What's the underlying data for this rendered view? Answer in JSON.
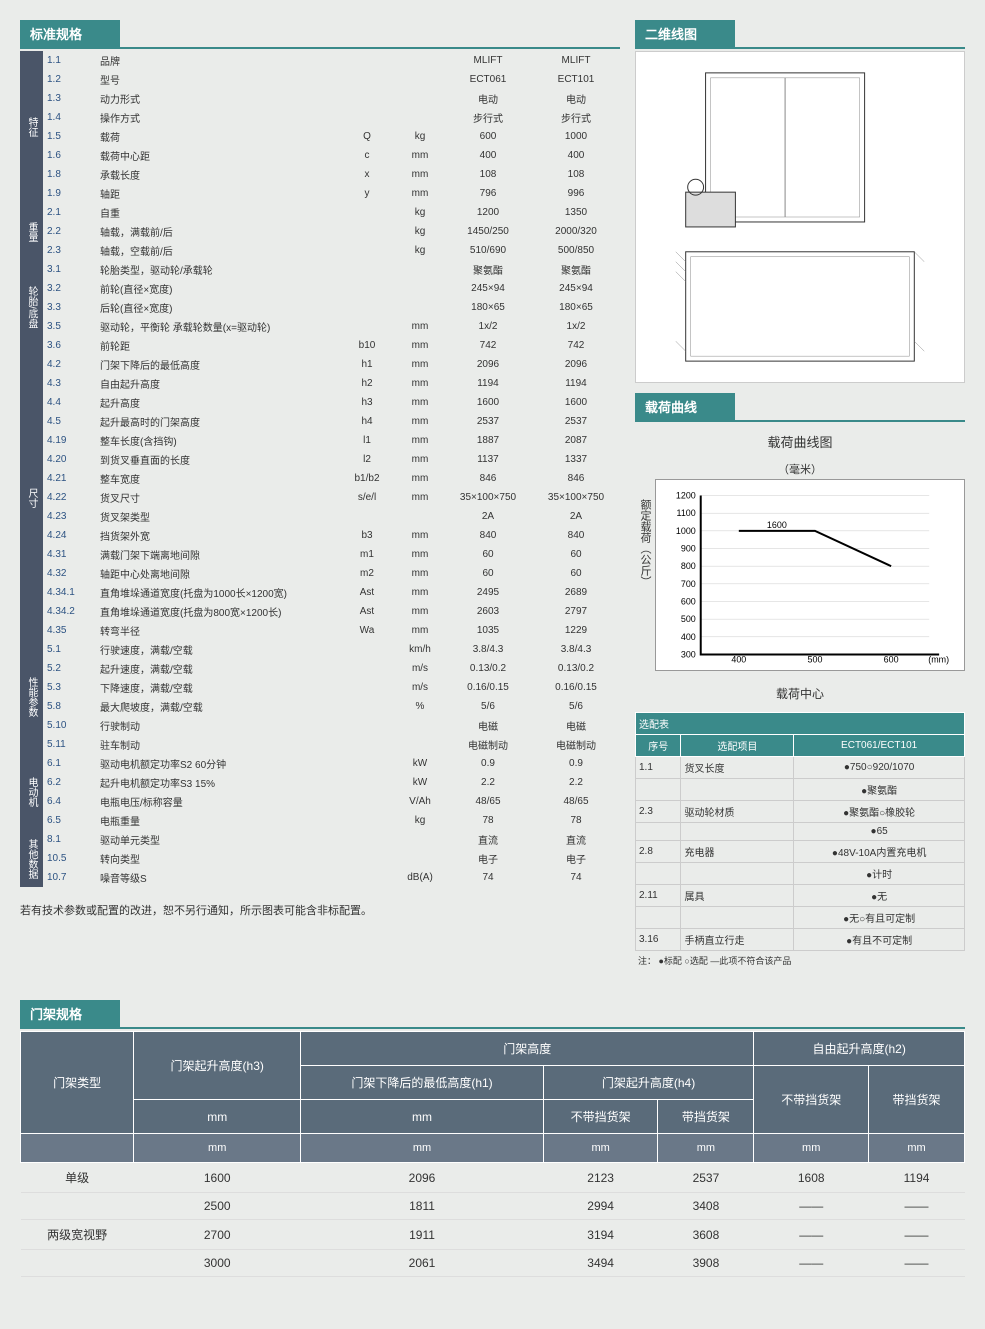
{
  "headers": {
    "spec": "标准规格",
    "drawing": "二维线图",
    "curve": "载荷曲线",
    "mast": "门架规格"
  },
  "spec_categories": [
    {
      "name": "特征",
      "rows": [
        {
          "n": "1.1",
          "l": "品牌",
          "s": "",
          "u": "",
          "v1": "MLIFT",
          "v2": "MLIFT"
        },
        {
          "n": "1.2",
          "l": "型号",
          "s": "",
          "u": "",
          "v1": "ECT061",
          "v2": "ECT101"
        },
        {
          "n": "1.3",
          "l": "动力形式",
          "s": "",
          "u": "",
          "v1": "电动",
          "v2": "电动"
        },
        {
          "n": "1.4",
          "l": "操作方式",
          "s": "",
          "u": "",
          "v1": "步行式",
          "v2": "步行式"
        },
        {
          "n": "1.5",
          "l": "载荷",
          "s": "Q",
          "u": "kg",
          "v1": "600",
          "v2": "1000"
        },
        {
          "n": "1.6",
          "l": "载荷中心距",
          "s": "c",
          "u": "mm",
          "v1": "400",
          "v2": "400"
        },
        {
          "n": "1.8",
          "l": "承载长度",
          "s": "x",
          "u": "mm",
          "v1": "108",
          "v2": "108"
        },
        {
          "n": "1.9",
          "l": "轴距",
          "s": "y",
          "u": "mm",
          "v1": "796",
          "v2": "996"
        }
      ]
    },
    {
      "name": "重量",
      "rows": [
        {
          "n": "2.1",
          "l": "自重",
          "s": "",
          "u": "kg",
          "v1": "1200",
          "v2": "1350"
        },
        {
          "n": "2.2",
          "l": "轴载，满载前/后",
          "s": "",
          "u": "kg",
          "v1": "1450/250",
          "v2": "2000/320"
        },
        {
          "n": "2.3",
          "l": "轴载，空载前/后",
          "s": "",
          "u": "kg",
          "v1": "510/690",
          "v2": "500/850"
        }
      ]
    },
    {
      "name": "轮胎/底盘",
      "rows": [
        {
          "n": "3.1",
          "l": "轮胎类型，驱动轮/承载轮",
          "s": "",
          "u": "",
          "v1": "聚氨酯",
          "v2": "聚氨酯"
        },
        {
          "n": "3.2",
          "l": "前轮(直径×宽度)",
          "s": "",
          "u": "",
          "v1": "245×94",
          "v2": "245×94"
        },
        {
          "n": "3.3",
          "l": "后轮(直径×宽度)",
          "s": "",
          "u": "",
          "v1": "180×65",
          "v2": "180×65"
        },
        {
          "n": "3.5",
          "l": "驱动轮，平衡轮 承载轮数量(x=驱动轮)",
          "s": "",
          "u": "mm",
          "v1": "1x/2",
          "v2": "1x/2"
        },
        {
          "n": "3.6",
          "l": "前轮距",
          "s": "b10",
          "u": "mm",
          "v1": "742",
          "v2": "742"
        }
      ]
    },
    {
      "name": "尺寸",
      "rows": [
        {
          "n": "4.2",
          "l": "门架下降后的最低高度",
          "s": "h1",
          "u": "mm",
          "v1": "2096",
          "v2": "2096"
        },
        {
          "n": "4.3",
          "l": "自由起升高度",
          "s": "h2",
          "u": "mm",
          "v1": "1194",
          "v2": "1194"
        },
        {
          "n": "4.4",
          "l": "起升高度",
          "s": "h3",
          "u": "mm",
          "v1": "1600",
          "v2": "1600"
        },
        {
          "n": "4.5",
          "l": "起升最高时的门架高度",
          "s": "h4",
          "u": "mm",
          "v1": "2537",
          "v2": "2537"
        },
        {
          "n": "4.19",
          "l": "整车长度(含挡钩)",
          "s": "l1",
          "u": "mm",
          "v1": "1887",
          "v2": "2087"
        },
        {
          "n": "4.20",
          "l": "到货叉垂直面的长度",
          "s": "l2",
          "u": "mm",
          "v1": "1137",
          "v2": "1337"
        },
        {
          "n": "4.21",
          "l": "整车宽度",
          "s": "b1/b2",
          "u": "mm",
          "v1": "846",
          "v2": "846"
        },
        {
          "n": "4.22",
          "l": "货叉尺寸",
          "s": "s/e/l",
          "u": "mm",
          "v1": "35×100×750",
          "v2": "35×100×750"
        },
        {
          "n": "4.23",
          "l": "货叉架类型",
          "s": "",
          "u": "",
          "v1": "2A",
          "v2": "2A"
        },
        {
          "n": "4.24",
          "l": "挡货架外宽",
          "s": "b3",
          "u": "mm",
          "v1": "840",
          "v2": "840"
        },
        {
          "n": "4.31",
          "l": "满载门架下端离地间隙",
          "s": "m1",
          "u": "mm",
          "v1": "60",
          "v2": "60"
        },
        {
          "n": "4.32",
          "l": "轴距中心处离地间隙",
          "s": "m2",
          "u": "mm",
          "v1": "60",
          "v2": "60"
        },
        {
          "n": "4.34.1",
          "l": "直角堆垛通道宽度(托盘为1000长×1200宽)",
          "s": "Ast",
          "u": "mm",
          "v1": "2495",
          "v2": "2689"
        },
        {
          "n": "4.34.2",
          "l": "直角堆垛通道宽度(托盘为800宽×1200长)",
          "s": "Ast",
          "u": "mm",
          "v1": "2603",
          "v2": "2797"
        },
        {
          "n": "4.35",
          "l": "转弯半径",
          "s": "Wa",
          "u": "mm",
          "v1": "1035",
          "v2": "1229"
        }
      ]
    },
    {
      "name": "性能参数",
      "rows": [
        {
          "n": "5.1",
          "l": "行驶速度，满载/空载",
          "s": "",
          "u": "km/h",
          "v1": "3.8/4.3",
          "v2": "3.8/4.3"
        },
        {
          "n": "5.2",
          "l": "起升速度，满载/空载",
          "s": "",
          "u": "m/s",
          "v1": "0.13/0.2",
          "v2": "0.13/0.2"
        },
        {
          "n": "5.3",
          "l": "下降速度，满载/空载",
          "s": "",
          "u": "m/s",
          "v1": "0.16/0.15",
          "v2": "0.16/0.15"
        },
        {
          "n": "5.8",
          "l": "最大爬坡度，满载/空载",
          "s": "",
          "u": "%",
          "v1": "5/6",
          "v2": "5/6"
        },
        {
          "n": "5.10",
          "l": "行驶制动",
          "s": "",
          "u": "",
          "v1": "电磁",
          "v2": "电磁"
        },
        {
          "n": "5.11",
          "l": "驻车制动",
          "s": "",
          "u": "",
          "v1": "电磁制动",
          "v2": "电磁制动"
        }
      ]
    },
    {
      "name": "电动机",
      "rows": [
        {
          "n": "6.1",
          "l": "驱动电机额定功率S2 60分钟",
          "s": "",
          "u": "kW",
          "v1": "0.9",
          "v2": "0.9"
        },
        {
          "n": "6.2",
          "l": "起升电机额定功率S3 15%",
          "s": "",
          "u": "kW",
          "v1": "2.2",
          "v2": "2.2"
        },
        {
          "n": "6.4",
          "l": "电瓶电压/标称容量",
          "s": "",
          "u": "V/Ah",
          "v1": "48/65",
          "v2": "48/65"
        },
        {
          "n": "6.5",
          "l": "电瓶重量",
          "s": "",
          "u": "kg",
          "v1": "78",
          "v2": "78"
        }
      ]
    },
    {
      "name": "其他数据",
      "rows": [
        {
          "n": "8.1",
          "l": "驱动单元类型",
          "s": "",
          "u": "",
          "v1": "直流",
          "v2": "直流"
        },
        {
          "n": "10.5",
          "l": "转向类型",
          "s": "",
          "u": "",
          "v1": "电子",
          "v2": "电子"
        },
        {
          "n": "10.7",
          "l": "噪音等级S",
          "s": "",
          "u": "dB(A)",
          "v1": "74",
          "v2": "74"
        }
      ]
    }
  ],
  "note_text": "若有技术参数或配置的改进，恕不另行通知，所示图表可能含非标配置。",
  "chart": {
    "title": "载荷曲线图",
    "y_label": "额定载荷（公斤）",
    "x_label": "载荷中心",
    "top_label": "（毫米）",
    "y_ticks": [
      300,
      400,
      500,
      600,
      700,
      800,
      900,
      1000,
      1100,
      1200
    ],
    "x_ticks": [
      400,
      500,
      600
    ],
    "x_unit": "(mm)",
    "annotation": "1600",
    "line": [
      [
        400,
        1000
      ],
      [
        500,
        1000
      ],
      [
        600,
        800
      ]
    ]
  },
  "options": {
    "header": "选配表",
    "cols": [
      "序号",
      "选配项目",
      "ECT061/ECT101"
    ],
    "rows": [
      {
        "n": "1.1",
        "item": "货叉长度",
        "val": "●750○920/1070"
      },
      {
        "n": "",
        "item": "",
        "val": "●聚氨酯"
      },
      {
        "n": "2.3",
        "item": "驱动轮材质",
        "val": "●聚氨酯○橡胶轮"
      },
      {
        "n": "",
        "item": "",
        "val": "●65"
      },
      {
        "n": "2.8",
        "item": "充电器",
        "val": "●48V-10A内置充电机"
      },
      {
        "n": "",
        "item": "",
        "val": "●计时"
      },
      {
        "n": "2.11",
        "item": "属具",
        "val": "●无"
      },
      {
        "n": "",
        "item": "",
        "val": "●无○有且可定制"
      },
      {
        "n": "3.16",
        "item": "手柄直立行走",
        "val": "●有且不可定制"
      }
    ],
    "footnote": "注：  ●标配  ○选配  —此项不符合该产品"
  },
  "mast": {
    "h1": "门架高度",
    "h2": "自由起升高度(h2)",
    "type_col": "门架类型",
    "h3_col": "门架起升高度(h3)",
    "h1_col": "门架下降后的最低高度(h1)",
    "h4_col": "门架起升高度(h4)",
    "no_guard": "不带挡货架",
    "with_guard": "带挡货架",
    "unit": "mm",
    "rows": [
      {
        "type": "单级",
        "h3": "1600",
        "h1": "2096",
        "h4a": "2123",
        "h4b": "2537",
        "h2a": "1608",
        "h2b": "1194"
      },
      {
        "type": "",
        "h3": "2500",
        "h1": "1811",
        "h4a": "2994",
        "h4b": "3408",
        "h2a": "——",
        "h2b": "——"
      },
      {
        "type": "两级宽视野",
        "h3": "2700",
        "h1": "1911",
        "h4a": "3194",
        "h4b": "3608",
        "h2a": "——",
        "h2b": "——"
      },
      {
        "type": "",
        "h3": "3000",
        "h1": "2061",
        "h4a": "3494",
        "h4b": "3908",
        "h2a": "——",
        "h2b": "——"
      }
    ]
  }
}
